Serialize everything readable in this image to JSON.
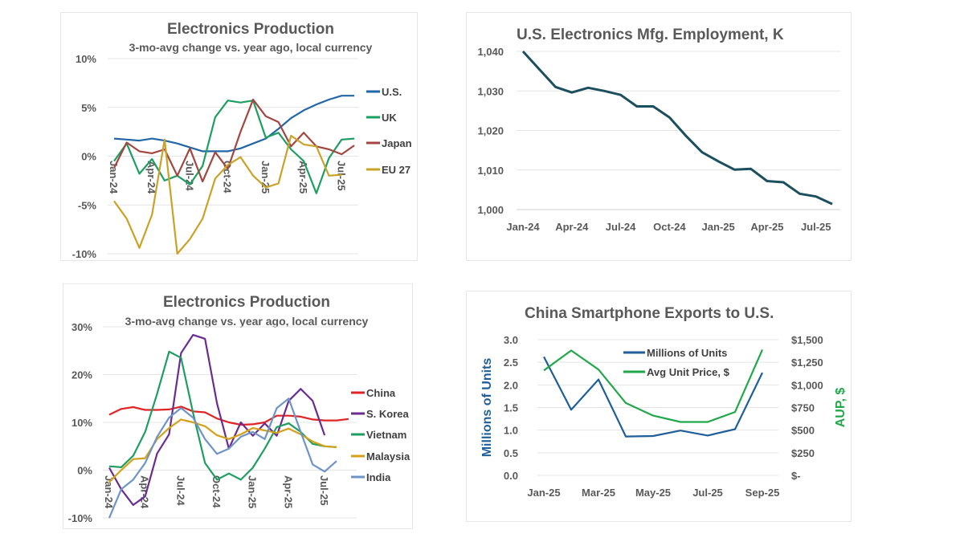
{
  "chart_data": [
    {
      "type": "line",
      "title": "Electronics Production",
      "subtitle": "3-mo-avg change vs. year ago, local currency",
      "x": [
        "Jan-24",
        "Feb-24",
        "Mar-24",
        "Apr-24",
        "May-24",
        "Jun-24",
        "Jul-24",
        "Aug-24",
        "Sep-24",
        "Oct-24",
        "Nov-24",
        "Dec-24",
        "Jan-25",
        "Feb-25",
        "Mar-25",
        "Apr-25",
        "May-25",
        "Jun-25",
        "Jul-25",
        "Aug-25"
      ],
      "x_tick_labels": [
        "Jan-24",
        "Apr-24",
        "Jul-24",
        "Oct-24",
        "Jan-25",
        "Apr-25",
        "Jul-25"
      ],
      "y_tick_labels": [
        "10%",
        "5%",
        "0%",
        "-5%",
        "-10%"
      ],
      "ylim": [
        -10,
        10
      ],
      "grid": true,
      "legend_position": "right",
      "series": [
        {
          "name": "U.S.",
          "color": "#2166a6",
          "values": [
            1.8,
            1.7,
            1.6,
            1.8,
            1.6,
            1.3,
            0.9,
            0.5,
            0.5,
            0.5,
            0.8,
            1.3,
            1.8,
            2.8,
            3.9,
            4.7,
            5.3,
            5.8,
            6.2,
            6.2
          ]
        },
        {
          "name": "UK",
          "color": "#1f9e62",
          "values": [
            -0.5,
            1.3,
            -1.8,
            -0.3,
            -2.5,
            -2.0,
            -2.9,
            -1.0,
            4.0,
            5.7,
            5.5,
            5.7,
            1.9,
            2.4,
            0.7,
            -0.5,
            -3.8,
            -0.2,
            1.7,
            1.8
          ]
        },
        {
          "name": "Japan",
          "color": "#a3463f",
          "values": [
            -1.2,
            1.4,
            0.5,
            0.3,
            0.7,
            -2.0,
            0.8,
            -2.6,
            0.4,
            -1.3,
            2.5,
            5.8,
            4.1,
            3.5,
            1.0,
            2.4,
            1.0,
            0.7,
            0.2,
            1.1
          ]
        },
        {
          "name": "EU 27",
          "color": "#c9a227",
          "values": [
            -4.6,
            -6.4,
            -9.4,
            -6.0,
            1.7,
            -10.0,
            -8.5,
            -6.4,
            -2.3,
            -0.9,
            -0.1,
            -2.0,
            -3.2,
            -2.8,
            2.1,
            1.2,
            1.0,
            -2.0,
            -1.9,
            null
          ]
        }
      ]
    },
    {
      "type": "line",
      "title": "U.S. Electronics Mfg. Employment, K",
      "x": [
        "Jan-24",
        "Feb-24",
        "Mar-24",
        "Apr-24",
        "May-24",
        "Jun-24",
        "Jul-24",
        "Aug-24",
        "Sep-24",
        "Oct-24",
        "Nov-24",
        "Dec-24",
        "Jan-25",
        "Feb-25",
        "Mar-25",
        "Apr-25",
        "May-25",
        "Jun-25",
        "Jul-25",
        "Aug-25"
      ],
      "x_tick_labels": [
        "Jan-24",
        "Apr-24",
        "Jul-24",
        "Oct-24",
        "Jan-25",
        "Apr-25",
        "Jul-25"
      ],
      "y_tick_labels": [
        "1,040",
        "1,030",
        "1,020",
        "1,010",
        "1,000"
      ],
      "ylim": [
        1000,
        1040
      ],
      "grid": true,
      "series": [
        {
          "name": "Employment",
          "color": "#1b4f5e",
          "values": [
            1040,
            1035.5,
            1031,
            1029.6,
            1030.8,
            1030,
            1029,
            1026.1,
            1026.1,
            1023.3,
            1018.7,
            1014.5,
            1012.2,
            1010.1,
            1010.3,
            1007.2,
            1006.9,
            1004,
            1003.3,
            1001.4
          ]
        }
      ]
    },
    {
      "type": "line",
      "title": "Electronics Production",
      "subtitle": "3-mo-avg change vs. year ago, local currency",
      "x": [
        "Jan-24",
        "Feb-24",
        "Mar-24",
        "Apr-24",
        "May-24",
        "Jun-24",
        "Jul-24",
        "Aug-24",
        "Sep-24",
        "Oct-24",
        "Nov-24",
        "Dec-24",
        "Jan-25",
        "Feb-25",
        "Mar-25",
        "Apr-25",
        "May-25",
        "Jun-25",
        "Jul-25",
        "Aug-25",
        "Sep-25"
      ],
      "x_tick_labels": [
        "Jan-24",
        "Apr-24",
        "Jul-24",
        "Oct-24",
        "Jan-25",
        "Apr-25",
        "Jul-25"
      ],
      "y_tick_labels": [
        "30%",
        "20%",
        "10%",
        "0%",
        "-10%"
      ],
      "ylim": [
        -10,
        30
      ],
      "grid": true,
      "legend_position": "right",
      "series": [
        {
          "name": "China",
          "color": "#e02424",
          "values": [
            11.6,
            12.8,
            13.2,
            12.6,
            12.6,
            12.7,
            13.3,
            12.3,
            12.1,
            10.8,
            10.0,
            9.5,
            9.6,
            10.0,
            11.4,
            11.4,
            11.2,
            10.6,
            10.4,
            10.4,
            10.7
          ]
        },
        {
          "name": "S. Korea",
          "color": "#6a2c91",
          "values": [
            0.5,
            -4.0,
            -7.3,
            -5.5,
            3.5,
            7.5,
            24.5,
            28.3,
            27.5,
            14.0,
            4.5,
            10.0,
            7.2,
            9.8,
            7.2,
            14.5,
            17.0,
            14.5,
            7.3,
            null,
            null
          ]
        },
        {
          "name": "Vietnam",
          "color": "#1f9e62",
          "values": [
            0.8,
            0.6,
            3.0,
            8.0,
            16.0,
            24.8,
            23.5,
            12.0,
            1.5,
            -2.0,
            -0.7,
            -2.0,
            0.5,
            4.5,
            9.0,
            9.8,
            8.0,
            5.5,
            5.0,
            4.8,
            null
          ]
        },
        {
          "name": "Malaysia",
          "color": "#d4a017",
          "values": [
            -2.5,
            0.0,
            2.3,
            2.5,
            6.5,
            8.8,
            10.6,
            10.0,
            9.2,
            7.3,
            6.5,
            7.5,
            8.8,
            8.3,
            7.8,
            8.7,
            7.5,
            6.0,
            5.0,
            4.8,
            null
          ]
        },
        {
          "name": "India",
          "color": "#6e93c8",
          "values": [
            -10.0,
            -4.0,
            -2.0,
            1.5,
            7.0,
            11.0,
            13.0,
            11.0,
            6.5,
            3.4,
            4.5,
            7.0,
            8.0,
            6.5,
            13.0,
            15.0,
            8.0,
            1.2,
            -0.3,
            1.9,
            null
          ]
        }
      ]
    },
    {
      "type": "line",
      "title": "China Smartphone Exports to U.S.",
      "x": [
        "Jan-25",
        "Feb-25",
        "Mar-25",
        "Apr-25",
        "May-25",
        "Jun-25",
        "Jul-25",
        "Aug-25",
        "Sep-25"
      ],
      "x_tick_labels": [
        "Jan-25",
        "Mar-25",
        "May-25",
        "Jul-25",
        "Sep-25"
      ],
      "ylabel": "Millions of Units",
      "ylabel_right": "AUP, $",
      "y_tick_labels": [
        "3.0",
        "2.5",
        "2.0",
        "1.5",
        "1.0",
        "0.5",
        "0.0"
      ],
      "y_right_tick_labels": [
        "$1,500",
        "$1,250",
        "$1,000",
        "$750",
        "$500",
        "$250",
        "$-"
      ],
      "ylim": [
        0,
        3
      ],
      "ylim_right": [
        0,
        1500
      ],
      "grid": true,
      "legend_position": "top-center",
      "series": [
        {
          "name": "Millions of Units",
          "color": "#1f5f99",
          "axis": "left",
          "values": [
            2.62,
            1.45,
            2.12,
            0.86,
            0.87,
            0.99,
            0.88,
            1.02,
            2.27
          ]
        },
        {
          "name": "Avg Unit Price, $",
          "color": "#22a84b",
          "axis": "right",
          "values": [
            1160,
            1380,
            1170,
            800,
            660,
            590,
            590,
            700,
            1390
          ]
        }
      ]
    }
  ]
}
